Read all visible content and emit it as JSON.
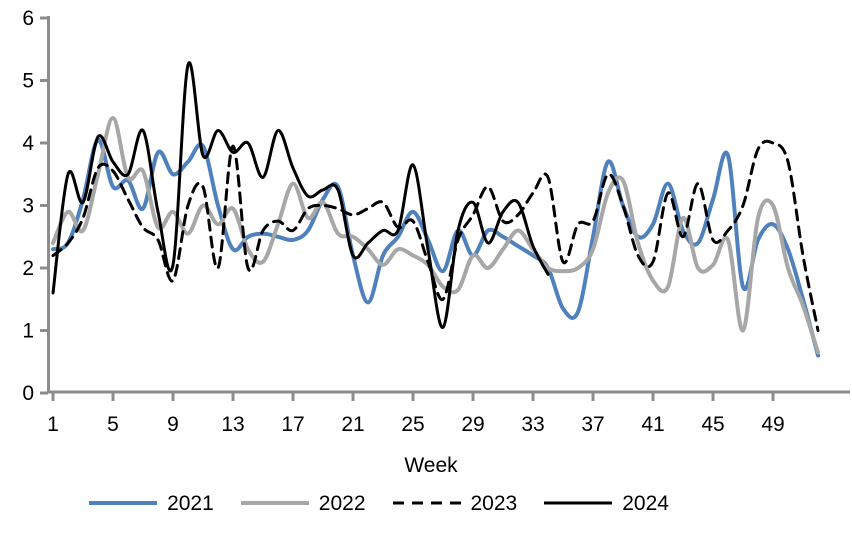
{
  "chart_data": {
    "type": "line",
    "title": "",
    "xlabel": "Week",
    "ylabel": "",
    "xlim": [
      1,
      52
    ],
    "ylim": [
      0,
      6
    ],
    "x_ticks": [
      1,
      5,
      9,
      13,
      17,
      21,
      25,
      29,
      33,
      37,
      41,
      45,
      49
    ],
    "y_ticks": [
      0,
      1,
      2,
      3,
      4,
      5,
      6
    ],
    "grid": false,
    "smooth_lines": true,
    "legend_position": "bottom",
    "axis_color": "#8C8C8C",
    "weeks": [
      1,
      2,
      3,
      4,
      5,
      6,
      7,
      8,
      9,
      10,
      11,
      12,
      13,
      14,
      15,
      16,
      17,
      18,
      19,
      20,
      21,
      22,
      23,
      24,
      25,
      26,
      27,
      28,
      29,
      30,
      31,
      32,
      33,
      34,
      35,
      36,
      37,
      38,
      39,
      40,
      41,
      42,
      43,
      44,
      45,
      46,
      47,
      48,
      49,
      50,
      51,
      52
    ],
    "series": [
      {
        "name": "2021",
        "color": "#4F81BD",
        "style": "solid",
        "width": 4,
        "values": [
          2.3,
          2.4,
          3.1,
          4.05,
          3.3,
          3.4,
          2.95,
          3.85,
          3.5,
          3.7,
          3.95,
          3.0,
          2.3,
          2.5,
          2.55,
          2.5,
          2.45,
          2.6,
          3.1,
          3.3,
          2.2,
          1.45,
          2.2,
          2.5,
          2.9,
          2.45,
          1.95,
          2.6,
          2.2,
          2.6,
          2.5,
          2.35,
          2.2,
          2.0,
          1.35,
          1.3,
          2.5,
          3.7,
          3.0,
          2.5,
          2.7,
          3.35,
          2.6,
          2.4,
          3.1,
          3.8,
          1.7,
          2.45,
          2.7,
          2.3,
          1.5,
          0.6
        ]
      },
      {
        "name": "2022",
        "color": "#A7A7A7",
        "style": "solid",
        "width": 4,
        "values": [
          2.4,
          2.9,
          2.6,
          3.5,
          4.4,
          3.45,
          3.55,
          2.65,
          2.9,
          2.55,
          3.0,
          2.7,
          2.95,
          2.3,
          2.1,
          2.7,
          3.35,
          2.8,
          3.05,
          2.55,
          2.5,
          2.3,
          2.05,
          2.3,
          2.2,
          2.05,
          1.7,
          1.65,
          2.2,
          2.0,
          2.3,
          2.6,
          2.3,
          2.0,
          1.95,
          2.0,
          2.3,
          3.2,
          3.4,
          2.4,
          1.8,
          1.7,
          2.8,
          2.0,
          2.05,
          2.45,
          1.0,
          2.8,
          3.0,
          2.0,
          1.4,
          0.65
        ]
      },
      {
        "name": "2023",
        "color": "#000000",
        "style": "dashed",
        "width": 3,
        "values": [
          2.2,
          2.4,
          2.8,
          3.6,
          3.55,
          3.1,
          2.65,
          2.45,
          1.8,
          3.0,
          3.3,
          2.0,
          3.95,
          2.0,
          2.6,
          2.75,
          2.6,
          2.95,
          3.0,
          2.95,
          2.85,
          2.95,
          3.05,
          2.65,
          2.75,
          2.1,
          1.5,
          2.45,
          2.85,
          3.3,
          2.75,
          2.85,
          3.2,
          3.45,
          2.1,
          2.7,
          2.75,
          3.5,
          3.0,
          2.2,
          2.1,
          3.2,
          2.5,
          3.35,
          2.45,
          2.6,
          3.0,
          3.9,
          4.0,
          3.7,
          2.2,
          1.0
        ]
      },
      {
        "name": "2024",
        "color": "#000000",
        "style": "solid",
        "width": 3,
        "values": [
          1.6,
          3.5,
          3.05,
          4.1,
          3.7,
          3.5,
          4.2,
          2.9,
          2.05,
          5.25,
          3.8,
          4.2,
          3.85,
          4.0,
          3.45,
          4.2,
          3.6,
          3.15,
          3.25,
          3.25,
          2.2,
          2.4,
          2.6,
          2.6,
          3.65,
          2.3,
          1.05,
          2.6,
          3.05,
          2.4,
          2.9,
          3.05,
          2.35,
          1.9
        ]
      }
    ]
  }
}
